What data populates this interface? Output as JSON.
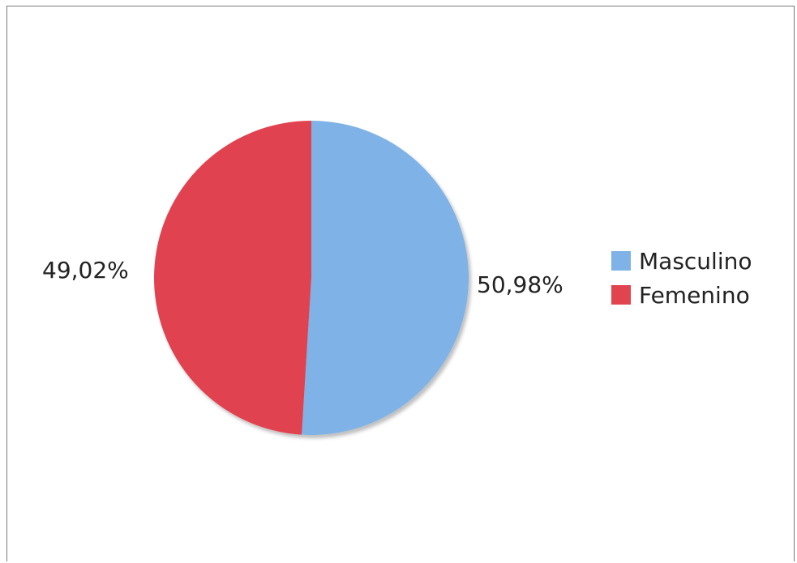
{
  "chart_data": {
    "type": "pie",
    "categories": [
      "Masculino",
      "Femenino"
    ],
    "values": [
      50.98,
      49.02
    ],
    "data_labels": [
      "50,98%",
      "49,02%"
    ],
    "colors": [
      "#7fb2e6",
      "#e1434f"
    ],
    "legend_position": "right",
    "title": ""
  }
}
